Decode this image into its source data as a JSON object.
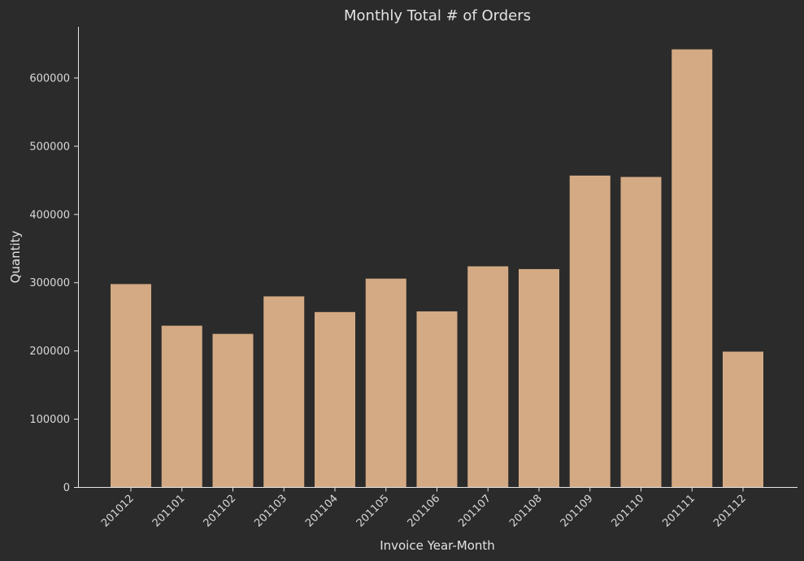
{
  "colors": {
    "background": "#2b2b2b",
    "bar": "#d4aa84",
    "text": "#e3e3e3",
    "axis": "#e6e6e6"
  },
  "chart_data": {
    "type": "bar",
    "title": "Monthly Total # of Orders",
    "xlabel": "Invoice Year-Month",
    "ylabel": "Quantity",
    "categories": [
      "201012",
      "201101",
      "201102",
      "201103",
      "201104",
      "201105",
      "201106",
      "201107",
      "201108",
      "201109",
      "201110",
      "201111",
      "201112"
    ],
    "values": [
      298000,
      237000,
      225000,
      280000,
      257000,
      306000,
      258000,
      324000,
      320000,
      457000,
      455000,
      642000,
      199000
    ],
    "yticks": [
      0,
      100000,
      200000,
      300000,
      400000,
      500000,
      600000
    ],
    "ylim": [
      0,
      675000
    ],
    "grid": false,
    "legend": "none"
  }
}
